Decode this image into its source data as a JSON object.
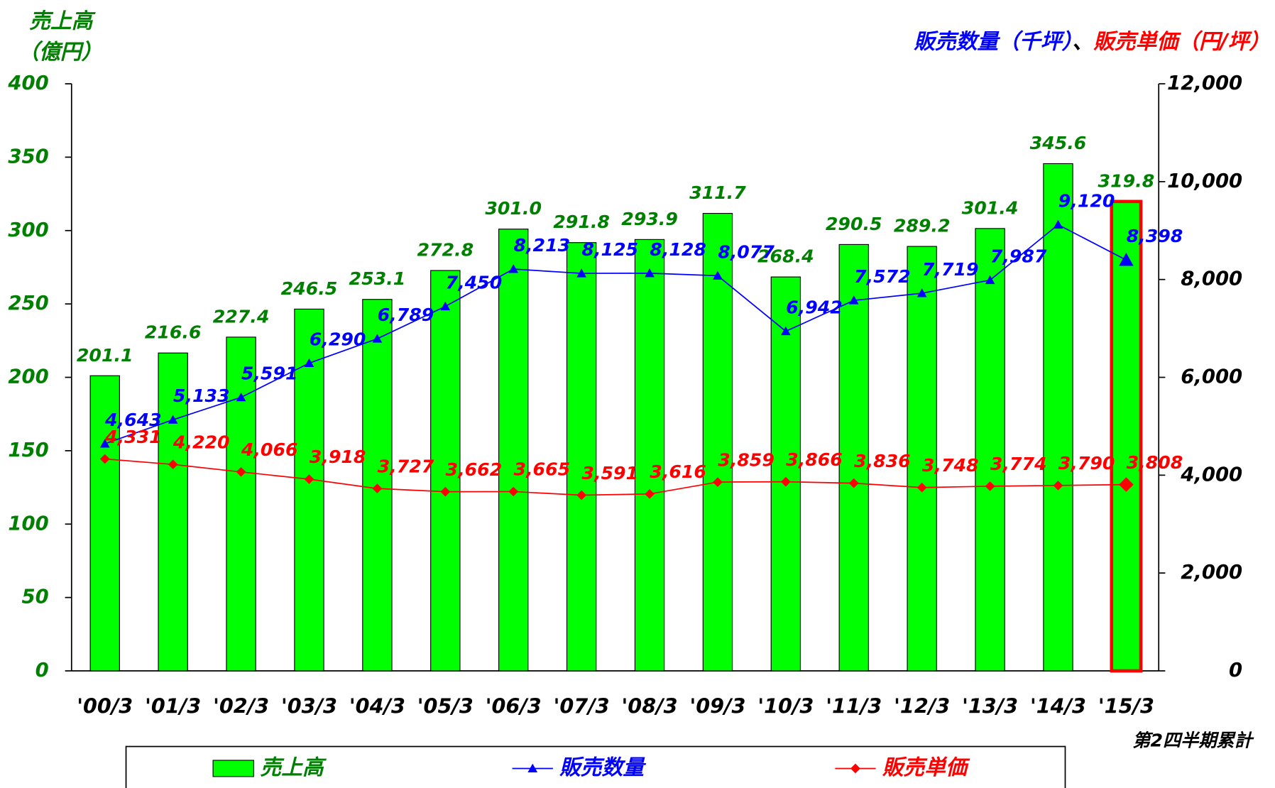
{
  "chart_data": {
    "type": "bar",
    "ylabel": [
      "売上高",
      "（億円）"
    ],
    "y2label": [
      "販売数量（千坪）",
      "、",
      "販売単価（円/坪）"
    ],
    "y2label_colors": [
      "#0000ff",
      "#000000",
      "#ff0000"
    ],
    "note": "第2四半期累計",
    "categories": [
      "'00/3",
      "'01/3",
      "'02/3",
      "'03/3",
      "'04/3",
      "'05/3",
      "'06/3",
      "'07/3",
      "'08/3",
      "'09/3",
      "'10/3",
      "'11/3",
      "'12/3",
      "'13/3",
      "'14/3",
      "'15/3"
    ],
    "series": [
      {
        "name": "売上高",
        "type": "bar",
        "axis": "y",
        "color": "#00ff00",
        "label_color": "#008000",
        "values": [
          201.1,
          216.6,
          227.4,
          246.5,
          253.1,
          272.8,
          301.0,
          291.8,
          293.9,
          311.7,
          268.4,
          290.5,
          289.2,
          301.4,
          345.6,
          319.8
        ],
        "value_labels": [
          "201.1",
          "216.6",
          "227.4",
          "246.5",
          "253.1",
          "272.8",
          "301.0",
          "291.8",
          "293.9",
          "311.7",
          "268.4",
          "290.5",
          "289.2",
          "301.4",
          "345.6",
          "319.8"
        ]
      },
      {
        "name": "販売数量",
        "type": "line",
        "marker": "triangle",
        "axis": "y2",
        "color": "#0000ff",
        "label_color": "#0000ff",
        "values": [
          4643,
          5133,
          5591,
          6290,
          6789,
          7450,
          8213,
          8125,
          8128,
          8077,
          6942,
          7572,
          7719,
          7987,
          9120,
          8398
        ],
        "value_labels": [
          "4,643",
          "5,133",
          "5,591",
          "6,290",
          "6,789",
          "7,450",
          "8,213",
          "8,125",
          "8,128",
          "8,077",
          "6,942",
          "7,572",
          "7,719",
          "7,987",
          "9,120",
          "8,398"
        ]
      },
      {
        "name": "販売単価",
        "type": "line",
        "marker": "diamond",
        "axis": "y2",
        "color": "#ff0000",
        "label_color": "#ff0000",
        "values": [
          4331,
          4220,
          4066,
          3918,
          3727,
          3662,
          3665,
          3591,
          3616,
          3859,
          3866,
          3836,
          3748,
          3774,
          3790,
          3808
        ],
        "value_labels": [
          "4,331",
          "4,220",
          "4,066",
          "3,918",
          "3,727",
          "3,662",
          "3,665",
          "3,591",
          "3,616",
          "3,859",
          "3,866",
          "3,836",
          "3,748",
          "3,774",
          "3,790",
          "3,808"
        ]
      }
    ],
    "highlight_index": 15,
    "highlight_color": "#ff0000",
    "ylim": [
      0,
      400
    ],
    "yticks": [
      0,
      50,
      100,
      150,
      200,
      250,
      300,
      350,
      400
    ],
    "y2lim": [
      0,
      12000
    ],
    "y2ticks": [
      0,
      {
        "value": 2000,
        "label": "2,000"
      },
      {
        "value": 4000,
        "label": "4,000"
      },
      {
        "value": 6000,
        "label": "6,000"
      },
      {
        "value": 8000,
        "label": "8,000"
      },
      {
        "value": 10000,
        "label": "10,000"
      },
      {
        "value": 12000,
        "label": "12,000"
      }
    ],
    "legend": "bottom"
  }
}
